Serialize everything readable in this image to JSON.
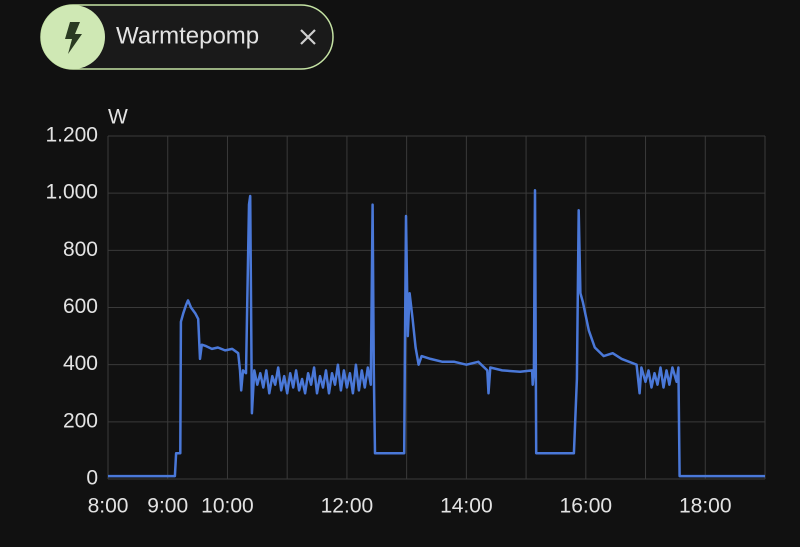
{
  "chart_data": {
    "type": "line",
    "y_label": "W",
    "series": [
      {
        "name": "Warmtepomp",
        "color": "#4a78d8",
        "x": [
          8.0,
          9.12,
          9.14,
          9.21,
          9.22,
          9.26,
          9.31,
          9.34,
          9.39,
          9.46,
          9.51,
          9.54,
          9.57,
          9.64,
          9.74,
          9.84,
          9.96,
          10.08,
          10.18,
          10.21,
          10.23,
          10.26,
          10.31,
          10.36,
          10.38,
          10.4,
          10.41,
          10.45,
          10.5,
          10.55,
          10.6,
          10.65,
          10.7,
          10.75,
          10.8,
          10.85,
          10.9,
          10.95,
          11.0,
          11.05,
          11.1,
          11.15,
          11.2,
          11.25,
          11.3,
          11.35,
          11.4,
          11.45,
          11.5,
          11.55,
          11.6,
          11.65,
          11.7,
          11.75,
          11.8,
          11.85,
          11.9,
          11.95,
          12.0,
          12.05,
          12.1,
          12.15,
          12.2,
          12.25,
          12.3,
          12.35,
          12.4,
          12.43,
          12.45,
          12.47,
          12.96,
          12.97,
          12.99,
          13.02,
          13.05,
          13.1,
          13.15,
          13.2,
          13.25,
          13.4,
          13.6,
          13.8,
          14.0,
          14.2,
          14.35,
          14.37,
          14.4,
          14.6,
          14.9,
          15.1,
          15.11,
          15.13,
          15.15,
          15.17,
          15.8,
          15.85,
          15.88,
          15.91,
          15.95,
          16.05,
          16.15,
          16.3,
          16.45,
          16.6,
          16.85,
          16.9,
          16.93,
          17.0,
          17.05,
          17.1,
          17.15,
          17.2,
          17.25,
          17.3,
          17.35,
          17.4,
          17.45,
          17.52,
          17.55,
          17.57,
          19.0
        ],
        "values": [
          10,
          10,
          90,
          90,
          550,
          580,
          610,
          625,
          600,
          580,
          560,
          420,
          470,
          465,
          455,
          460,
          450,
          455,
          440,
          380,
          310,
          380,
          370,
          960,
          990,
          500,
          230,
          380,
          330,
          370,
          320,
          380,
          300,
          360,
          330,
          390,
          310,
          360,
          300,
          370,
          320,
          380,
          310,
          350,
          300,
          370,
          330,
          390,
          300,
          360,
          320,
          380,
          300,
          370,
          330,
          400,
          310,
          380,
          320,
          370,
          300,
          400,
          310,
          380,
          320,
          390,
          330,
          960,
          380,
          90,
          90,
          400,
          920,
          500,
          650,
          560,
          460,
          400,
          430,
          420,
          410,
          410,
          400,
          410,
          380,
          300,
          390,
          380,
          375,
          380,
          330,
          380,
          1010,
          90,
          90,
          350,
          940,
          650,
          620,
          520,
          460,
          430,
          440,
          420,
          400,
          300,
          390,
          340,
          380,
          320,
          370,
          330,
          390,
          320,
          380,
          330,
          390,
          340,
          390,
          10,
          10
        ]
      }
    ],
    "xlim": [
      8,
      19
    ],
    "xticks": [
      {
        "value": 8,
        "label": "8:00"
      },
      {
        "value": 9,
        "label": "9:00"
      },
      {
        "value": 10,
        "label": "10:00"
      },
      {
        "value": 12,
        "label": "12:00"
      },
      {
        "value": 14,
        "label": "14:00"
      },
      {
        "value": 16,
        "label": "16:00"
      },
      {
        "value": 18,
        "label": "18:00"
      }
    ],
    "xminor_ticks": [
      11,
      13,
      15,
      17,
      19
    ],
    "ylim": [
      0,
      1200
    ],
    "yticks": [
      0,
      200,
      400,
      600,
      800,
      {
        "value": 1000,
        "label": "1.000"
      },
      {
        "value": 1200,
        "label": "1.200"
      }
    ],
    "grid": true
  }
}
